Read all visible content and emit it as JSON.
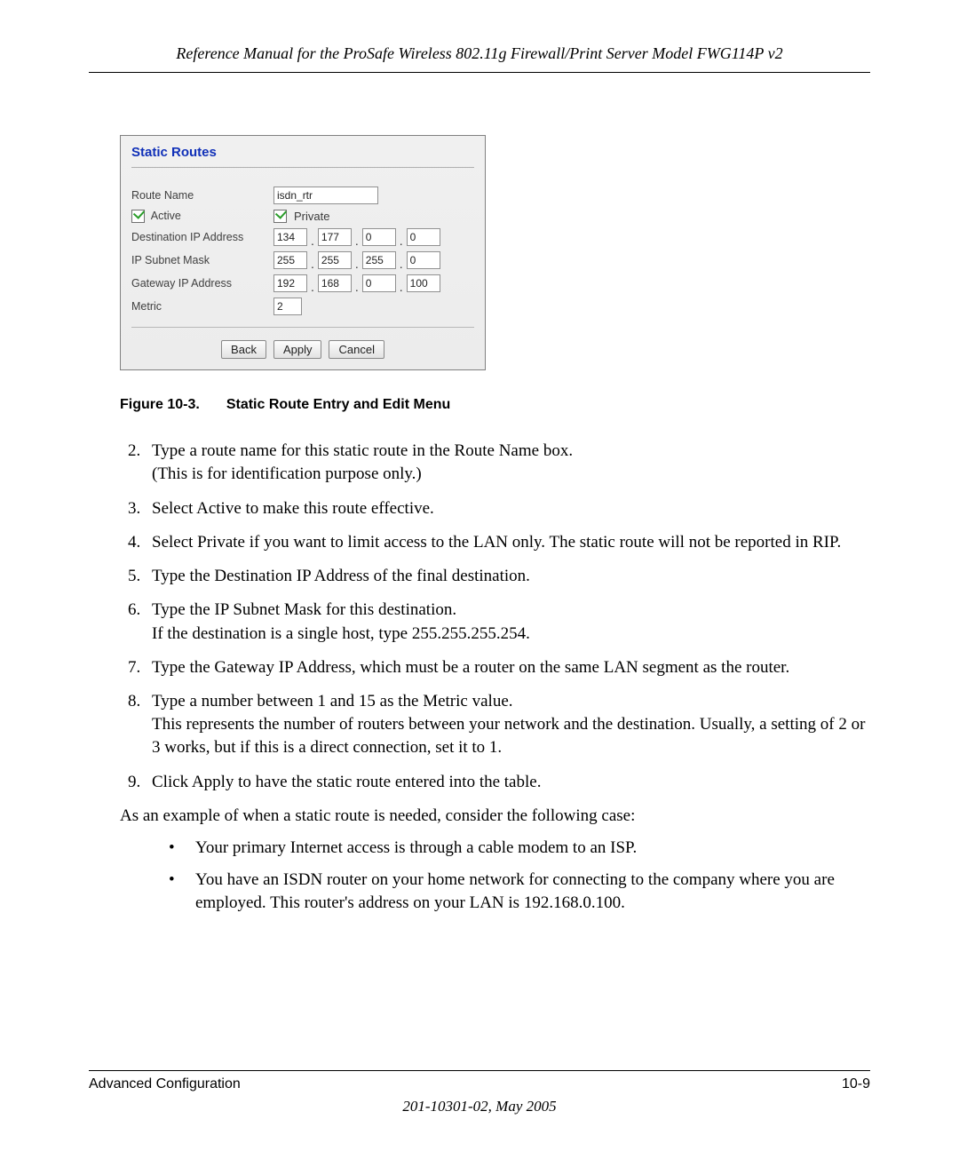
{
  "header_text": "Reference Manual for the ProSafe Wireless 802.11g  Firewall/Print Server Model FWG114P v2",
  "panel": {
    "title": "Static Routes",
    "route_name_label": "Route Name",
    "route_name_value": "isdn_rtr",
    "active_label": "Active",
    "active_checked": true,
    "private_label": "Private",
    "private_checked": true,
    "dest_ip_label": "Destination IP Address",
    "dest_ip": [
      "134",
      "177",
      "0",
      "0"
    ],
    "subnet_label": "IP Subnet Mask",
    "subnet": [
      "255",
      "255",
      "255",
      "0"
    ],
    "gateway_label": "Gateway IP Address",
    "gateway": [
      "192",
      "168",
      "0",
      "100"
    ],
    "metric_label": "Metric",
    "metric_value": "2",
    "btn_back": "Back",
    "btn_apply": "Apply",
    "btn_cancel": "Cancel"
  },
  "figure_caption_prefix": "Figure 10-3.",
  "figure_caption_text": "Static Route Entry and Edit Menu",
  "steps": {
    "s2a": "Type a route name for this static route in the Route Name box.",
    "s2b": "(This is for identification purpose only.)",
    "s3": "Select Active to make this route effective.",
    "s4": "Select Private if you want to limit access to the LAN only. The static route will not be reported in RIP.",
    "s5": "Type the Destination IP Address of the final destination.",
    "s6a": "Type the IP Subnet Mask for this destination.",
    "s6b": "If the destination is a single host, type 255.255.255.254.",
    "s7": "Type the Gateway IP Address, which must be a router on the same LAN segment as the router.",
    "s8a": "Type a number between 1 and 15 as the Metric value.",
    "s8b": "This represents the number of routers between your network and the destination. Usually, a setting of 2 or 3 works, but if this is a direct connection, set it to 1.",
    "s9": "Click Apply to have the static route entered into the table."
  },
  "example_intro": "As an example of when a static route is needed, consider the following case:",
  "bullets": {
    "b1": "Your primary Internet access is through a cable modem to an ISP.",
    "b2": "You have an ISDN router on your home network for connecting to the company where you are employed. This router's address on your LAN is 192.168.0.100."
  },
  "footer_left": "Advanced Configuration",
  "footer_right": "10-9",
  "footer_docid": "201-10301-02, May 2005"
}
